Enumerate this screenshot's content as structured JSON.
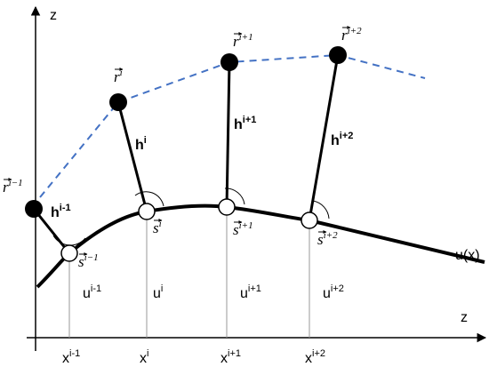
{
  "axes": {
    "vertical_label": "z",
    "horizontal_label": "z"
  },
  "curve_label": "u(x)",
  "points": [
    {
      "r": {
        "base": "r",
        "sup": "i−1"
      },
      "s": {
        "base": "s",
        "sup": "i−1"
      },
      "h": {
        "base": "h",
        "sup": "i-1"
      },
      "u": {
        "base": "u",
        "sup": "i-1"
      },
      "x": {
        "base": "x",
        "sup": "i-1"
      }
    },
    {
      "r": {
        "base": "r",
        "sup": "i"
      },
      "s": {
        "base": "s",
        "sup": "i"
      },
      "h": {
        "base": "h",
        "sup": "i"
      },
      "u": {
        "base": "u",
        "sup": "i"
      },
      "x": {
        "base": "x",
        "sup": "i"
      }
    },
    {
      "r": {
        "base": "r",
        "sup": "i+1"
      },
      "s": {
        "base": "s",
        "sup": "i+1"
      },
      "h": {
        "base": "h",
        "sup": "i+1"
      },
      "u": {
        "base": "u",
        "sup": "i+1"
      },
      "x": {
        "base": "x",
        "sup": "i+1"
      }
    },
    {
      "r": {
        "base": "r",
        "sup": "i+2"
      },
      "s": {
        "base": "s",
        "sup": "i+2"
      },
      "h": {
        "base": "h",
        "sup": "i+2"
      },
      "u": {
        "base": "u",
        "sup": "i+2"
      },
      "x": {
        "base": "x",
        "sup": "i+2"
      }
    }
  ]
}
